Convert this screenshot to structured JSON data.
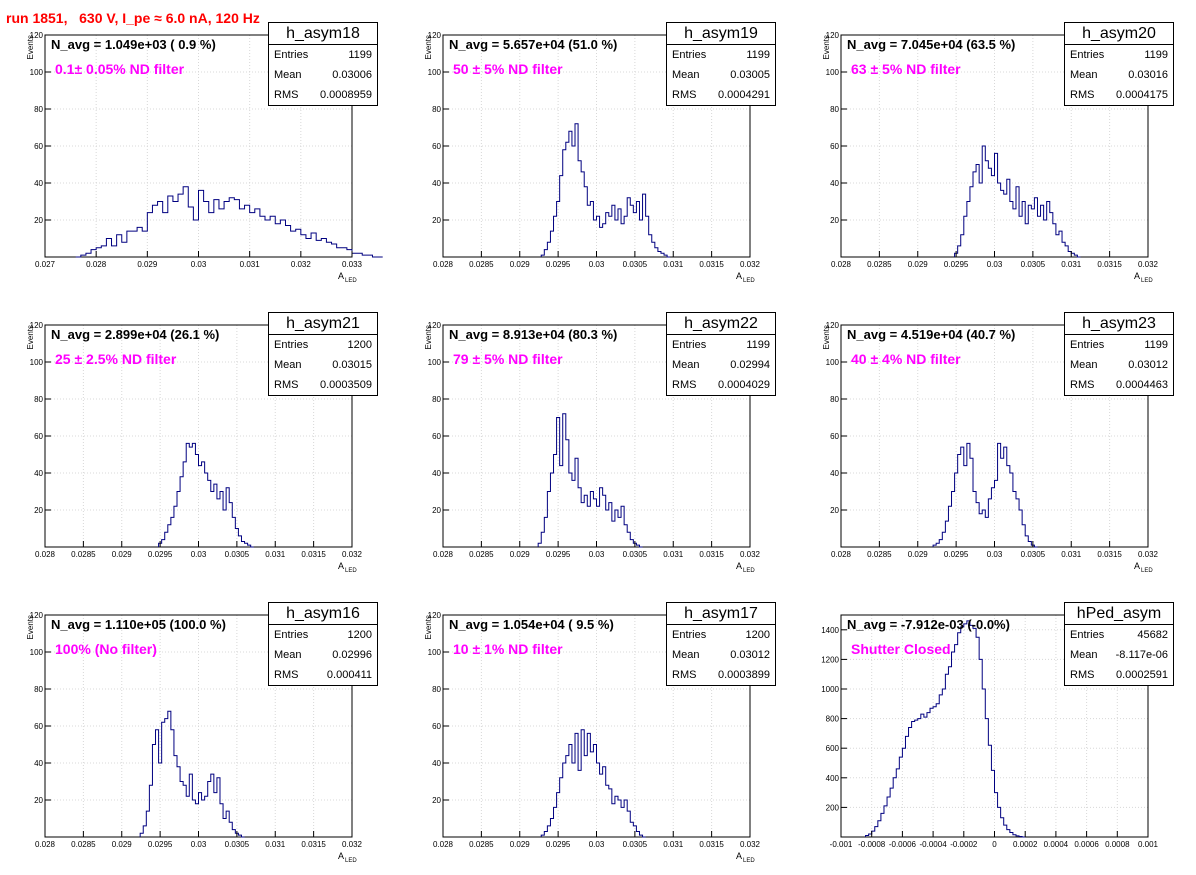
{
  "header": {
    "title": "run 1851,   630 V, I_pe ≈ 6.0 nA, 120 Hz"
  },
  "chart_data": [
    {
      "type": "bar",
      "name": "h_asym18",
      "navg": "N_avg = 1.049e+03 ( 0.9 %)",
      "filter": "0.1± 0.05% ND filter",
      "stats": {
        "Entries": "1199",
        "Mean": "0.03006",
        "RMS": "0.0008959"
      },
      "ylabel": "Events",
      "xlabel": "A",
      "xlabel_sub": "LED",
      "xlim": [
        0.027,
        0.033
      ],
      "ylim": [
        0,
        120
      ],
      "xticks": [
        0.027,
        0.028,
        0.029,
        0.03,
        0.031,
        0.032,
        0.033
      ],
      "xtick_labels": [
        "0.027",
        "0.028",
        "0.029",
        "0.03",
        "0.031",
        "0.032",
        "0.033"
      ],
      "yticks": [
        20,
        40,
        60,
        80,
        100,
        120
      ],
      "bins": {
        "start": 0.0276,
        "width": 0.0001,
        "values": [
          0,
          1,
          2,
          4,
          5,
          6,
          10,
          6,
          12,
          8,
          14,
          14,
          16,
          14,
          24,
          28,
          30,
          24,
          33,
          30,
          34,
          38,
          27,
          20,
          36,
          30,
          24,
          31,
          26,
          30,
          32,
          31,
          26,
          28,
          24,
          26,
          22,
          20,
          22,
          18,
          20,
          17,
          14,
          15,
          12,
          10,
          13,
          9,
          10,
          8,
          7,
          5,
          5,
          4,
          2,
          2,
          1,
          1,
          0,
          0
        ]
      }
    },
    {
      "type": "bar",
      "name": "h_asym19",
      "navg": "N_avg = 5.657e+04 (51.0 %)",
      "filter": "50 ± 5% ND filter",
      "stats": {
        "Entries": "1199",
        "Mean": "0.03005",
        "RMS": "0.0004291"
      },
      "ylabel": "Events",
      "xlabel": "A",
      "xlabel_sub": "LED",
      "xlim": [
        0.028,
        0.032
      ],
      "ylim": [
        0,
        120
      ],
      "xticks": [
        0.028,
        0.0285,
        0.029,
        0.0295,
        0.03,
        0.0305,
        0.031,
        0.0315,
        0.032
      ],
      "xtick_labels": [
        "0.028",
        "0.0285",
        "0.029",
        "0.0295",
        "0.03",
        "0.0305",
        "0.031",
        "0.0315",
        "0.032"
      ],
      "yticks": [
        20,
        40,
        60,
        80,
        100,
        120
      ],
      "bins": {
        "start": 0.02928,
        "width": 4e-05,
        "values": [
          1,
          4,
          8,
          14,
          22,
          30,
          44,
          58,
          62,
          68,
          60,
          72,
          52,
          46,
          38,
          28,
          30,
          20,
          22,
          16,
          18,
          24,
          22,
          28,
          20,
          26,
          18,
          22,
          32,
          28,
          24,
          30,
          20,
          34,
          22,
          12,
          8,
          5,
          3,
          2,
          1,
          0
        ]
      }
    },
    {
      "type": "bar",
      "name": "h_asym20",
      "navg": "N_avg = 7.045e+04 (63.5 %)",
      "filter": "63 ± 5% ND filter",
      "stats": {
        "Entries": "1199",
        "Mean": "0.03016",
        "RMS": "0.0004175"
      },
      "ylabel": "Events",
      "xlabel": "A",
      "xlabel_sub": "LED",
      "xlim": [
        0.028,
        0.032
      ],
      "ylim": [
        0,
        120
      ],
      "xticks": [
        0.028,
        0.0285,
        0.029,
        0.0295,
        0.03,
        0.0305,
        0.031,
        0.0315,
        0.032
      ],
      "xtick_labels": [
        "0.028",
        "0.0285",
        "0.029",
        "0.0295",
        "0.03",
        "0.0305",
        "0.031",
        "0.0315",
        "0.032"
      ],
      "yticks": [
        20,
        40,
        60,
        80,
        100,
        120
      ],
      "bins": {
        "start": 0.02948,
        "width": 4e-05,
        "values": [
          2,
          6,
          12,
          22,
          30,
          38,
          46,
          50,
          40,
          60,
          52,
          48,
          44,
          56,
          40,
          36,
          34,
          42,
          30,
          26,
          38,
          22,
          30,
          18,
          28,
          26,
          32,
          22,
          28,
          20,
          30,
          24,
          18,
          12,
          14,
          8,
          6,
          3,
          2,
          1,
          0
        ]
      }
    },
    {
      "type": "bar",
      "name": "h_asym21",
      "navg": "N_avg = 2.899e+04 (26.1 %)",
      "filter": "25 ± 2.5% ND filter",
      "stats": {
        "Entries": "1200",
        "Mean": "0.03015",
        "RMS": "0.0003509"
      },
      "ylabel": "Events",
      "xlabel": "A",
      "xlabel_sub": "LED",
      "xlim": [
        0.028,
        0.032
      ],
      "ylim": [
        0,
        120
      ],
      "xticks": [
        0.028,
        0.0285,
        0.029,
        0.0295,
        0.03,
        0.0305,
        0.031,
        0.0315,
        0.032
      ],
      "xtick_labels": [
        "0.028",
        "0.0285",
        "0.029",
        "0.0295",
        "0.03",
        "0.0305",
        "0.031",
        "0.0315",
        "0.032"
      ],
      "yticks": [
        20,
        40,
        60,
        80,
        100,
        120
      ],
      "bins": {
        "start": 0.02948,
        "width": 4e-05,
        "values": [
          2,
          4,
          8,
          12,
          16,
          22,
          30,
          38,
          46,
          56,
          54,
          56,
          50,
          44,
          46,
          40,
          36,
          30,
          34,
          26,
          30,
          20,
          32,
          24,
          16,
          10,
          6,
          3,
          2,
          1,
          0
        ]
      }
    },
    {
      "type": "bar",
      "name": "h_asym22",
      "navg": "N_avg = 8.913e+04 (80.3 %)",
      "filter": "79 ± 5% ND filter",
      "stats": {
        "Entries": "1199",
        "Mean": "0.02994",
        "RMS": "0.0004029"
      },
      "ylabel": "Events",
      "xlabel": "A",
      "xlabel_sub": "LED",
      "xlim": [
        0.028,
        0.032
      ],
      "ylim": [
        0,
        120
      ],
      "xticks": [
        0.028,
        0.0285,
        0.029,
        0.0295,
        0.03,
        0.0305,
        0.031,
        0.0315,
        0.032
      ],
      "xtick_labels": [
        "0.028",
        "0.0285",
        "0.029",
        "0.0295",
        "0.03",
        "0.0305",
        "0.031",
        "0.0315",
        "0.032"
      ],
      "yticks": [
        20,
        40,
        60,
        80,
        100,
        120
      ],
      "bins": {
        "start": 0.02924,
        "width": 4e-05,
        "values": [
          2,
          8,
          16,
          30,
          40,
          50,
          70,
          44,
          72,
          58,
          40,
          36,
          48,
          32,
          24,
          28,
          22,
          30,
          26,
          22,
          32,
          28,
          20,
          24,
          14,
          20,
          16,
          22,
          12,
          8,
          4,
          2,
          1,
          0
        ]
      }
    },
    {
      "type": "bar",
      "name": "h_asym23",
      "navg": "N_avg = 4.519e+04 (40.7 %)",
      "filter": "40 ± 4% ND filter",
      "stats": {
        "Entries": "1199",
        "Mean": "0.03012",
        "RMS": "0.0004463"
      },
      "ylabel": "Events",
      "xlabel": "A",
      "xlabel_sub": "LED",
      "xlim": [
        0.028,
        0.032
      ],
      "ylim": [
        0,
        120
      ],
      "xticks": [
        0.028,
        0.0285,
        0.029,
        0.0295,
        0.03,
        0.0305,
        0.031,
        0.0315,
        0.032
      ],
      "xtick_labels": [
        "0.028",
        "0.0285",
        "0.029",
        "0.0295",
        "0.03",
        "0.0305",
        "0.031",
        "0.0315",
        "0.032"
      ],
      "yticks": [
        20,
        40,
        60,
        80,
        100,
        120
      ],
      "bins": {
        "start": 0.0292,
        "width": 4e-05,
        "values": [
          1,
          2,
          4,
          8,
          14,
          22,
          30,
          40,
          50,
          54,
          44,
          56,
          48,
          30,
          24,
          18,
          20,
          16,
          26,
          32,
          36,
          56,
          48,
          54,
          44,
          40,
          30,
          26,
          20,
          12,
          6,
          3,
          1,
          0
        ]
      }
    },
    {
      "type": "bar",
      "name": "h_asym16",
      "navg": "N_avg = 1.110e+05 (100.0 %)",
      "filter": "100% (No filter)",
      "stats": {
        "Entries": "1200",
        "Mean": "0.02996",
        "RMS": "0.000411"
      },
      "ylabel": "Events",
      "xlabel": "A",
      "xlabel_sub": "LED",
      "xlim": [
        0.028,
        0.032
      ],
      "ylim": [
        0,
        120
      ],
      "xticks": [
        0.028,
        0.0285,
        0.029,
        0.0295,
        0.03,
        0.0305,
        0.031,
        0.0315,
        0.032
      ],
      "xtick_labels": [
        "0.028",
        "0.0285",
        "0.029",
        "0.0295",
        "0.03",
        "0.0305",
        "0.031",
        "0.0315",
        "0.032"
      ],
      "yticks": [
        20,
        40,
        60,
        80,
        100,
        120
      ],
      "bins": {
        "start": 0.02924,
        "width": 4e-05,
        "values": [
          2,
          6,
          14,
          28,
          50,
          58,
          40,
          62,
          64,
          68,
          58,
          44,
          38,
          30,
          28,
          22,
          34,
          20,
          18,
          24,
          20,
          22,
          30,
          34,
          24,
          32,
          18,
          10,
          14,
          8,
          4,
          2,
          1,
          0
        ]
      }
    },
    {
      "type": "bar",
      "name": "h_asym17",
      "navg": "N_avg = 1.054e+04 ( 9.5 %)",
      "filter": "10 ± 1% ND filter",
      "stats": {
        "Entries": "1200",
        "Mean": "0.03012",
        "RMS": "0.0003899"
      },
      "ylabel": "Events",
      "xlabel": "A",
      "xlabel_sub": "LED",
      "xlim": [
        0.028,
        0.032
      ],
      "ylim": [
        0,
        120
      ],
      "xticks": [
        0.028,
        0.0285,
        0.029,
        0.0295,
        0.03,
        0.0305,
        0.031,
        0.0315,
        0.032
      ],
      "xtick_labels": [
        "0.028",
        "0.0285",
        "0.029",
        "0.0295",
        "0.03",
        "0.0305",
        "0.031",
        "0.0315",
        "0.032"
      ],
      "yticks": [
        20,
        40,
        60,
        80,
        100,
        120
      ],
      "bins": {
        "start": 0.02928,
        "width": 4e-05,
        "values": [
          1,
          3,
          6,
          10,
          16,
          24,
          32,
          40,
          44,
          50,
          40,
          56,
          36,
          58,
          44,
          56,
          46,
          50,
          40,
          34,
          38,
          28,
          26,
          18,
          22,
          20,
          16,
          20,
          14,
          8,
          6,
          3,
          1,
          0
        ]
      }
    },
    {
      "type": "bar",
      "name": "hPed_asym",
      "navg": "N_avg = -7.912e-03 (-0.0%)",
      "filter": "Shutter Closed",
      "stats": {
        "Entries": "45682",
        "Mean": "-8.117e-06",
        "RMS": "0.0002591"
      },
      "ylabel": "",
      "xlabel": "",
      "xlabel_sub": "",
      "xlim": [
        -0.001,
        0.001
      ],
      "ylim": [
        0,
        1500
      ],
      "xticks": [
        -0.001,
        -0.0008,
        -0.0006,
        -0.0004,
        -0.0002,
        0,
        0.0002,
        0.0004,
        0.0006,
        0.0008,
        0.001
      ],
      "xtick_labels": [
        "-0.001",
        "-0.0008",
        "-0.0006",
        "-0.0004",
        "-0.0002",
        "0",
        "0.0002",
        "0.0004",
        "0.0006",
        "0.0008",
        "0.001"
      ],
      "yticks": [
        200,
        400,
        600,
        800,
        1000,
        1200,
        1400
      ],
      "bins": {
        "start": -0.00084,
        "width": 2e-05,
        "values": [
          10,
          20,
          40,
          70,
          110,
          160,
          210,
          270,
          330,
          400,
          460,
          540,
          600,
          680,
          740,
          780,
          790,
          800,
          830,
          810,
          840,
          870,
          880,
          900,
          960,
          1000,
          1100,
          1150,
          1250,
          1300,
          1380,
          1420,
          1440,
          1460,
          1430,
          1410,
          1350,
          1200,
          1000,
          800,
          620,
          450,
          300,
          200,
          130,
          80,
          50,
          30,
          15,
          8,
          3,
          0
        ]
      }
    }
  ]
}
